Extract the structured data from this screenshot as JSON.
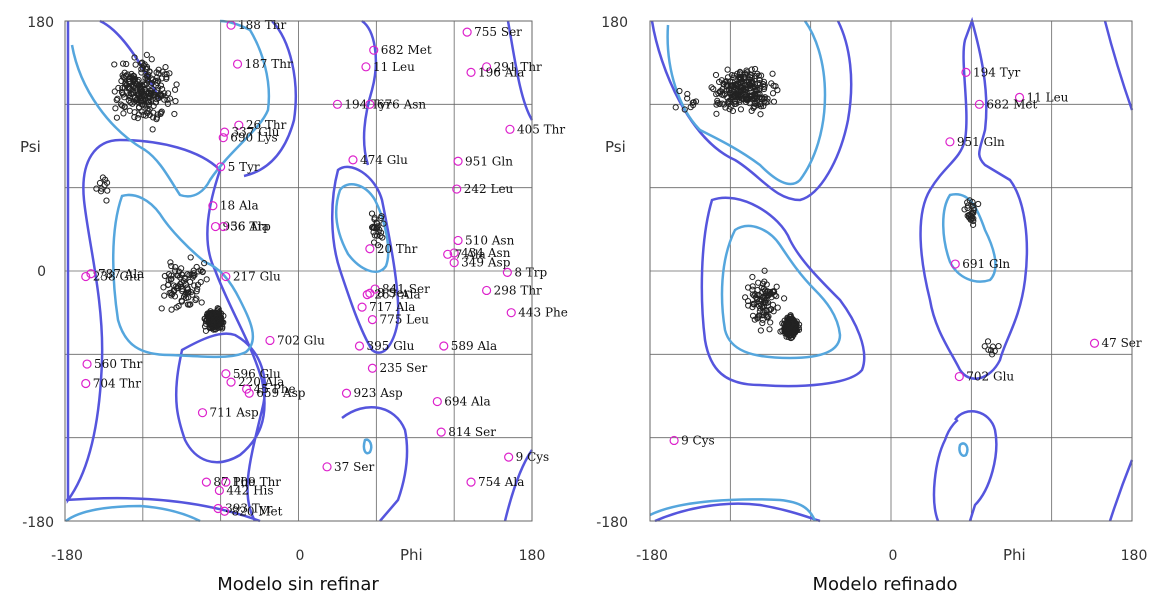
{
  "colors": {
    "background": "#ffffff",
    "grid": "#666666",
    "allowed_contour": "#5555dd",
    "favored_contour": "#55a6dd",
    "point_normal": "#222222",
    "point_outlier": "#dd22cc"
  },
  "chart_data": [
    {
      "type": "scatter",
      "title": "",
      "caption": "Modelo sin refinar",
      "xlabel": "Phi",
      "ylabel": "Psi",
      "xlim": [
        -180,
        180
      ],
      "ylim": [
        -180,
        180
      ],
      "xticks": [
        "-180",
        "0",
        "180"
      ],
      "yticks": [
        "180",
        "0",
        "-180"
      ],
      "grid": true,
      "outliers": [
        {
          "label": "188 Thr",
          "phi": -52,
          "psi": 177
        },
        {
          "label": "187 Thr",
          "phi": -47,
          "psi": 149
        },
        {
          "label": "682 Met",
          "phi": 58,
          "psi": 159
        },
        {
          "label": "11 Leu",
          "phi": 52,
          "psi": 147
        },
        {
          "label": "755 Ser",
          "phi": 130,
          "psi": 172
        },
        {
          "label": "291 Thr",
          "phi": 145,
          "psi": 147
        },
        {
          "label": "196 Ala",
          "phi": 133,
          "psi": 143
        },
        {
          "label": "194 Tyr",
          "phi": 30,
          "psi": 120
        },
        {
          "label": "676 Asn",
          "phi": 55,
          "psi": 120
        },
        {
          "label": "405 Thr",
          "phi": 163,
          "psi": 102
        },
        {
          "label": "26 Thr",
          "phi": -46,
          "psi": 105
        },
        {
          "label": "337 Glu",
          "phi": -57,
          "psi": 100
        },
        {
          "label": "690 Lys",
          "phi": -58,
          "psi": 96
        },
        {
          "label": "474 Glu",
          "phi": 42,
          "psi": 80
        },
        {
          "label": "951 Gln",
          "phi": 123,
          "psi": 79
        },
        {
          "label": "5 Tyr",
          "phi": -60,
          "psi": 75
        },
        {
          "label": "242 Leu",
          "phi": 122,
          "psi": 59
        },
        {
          "label": "18 Ala",
          "phi": -66,
          "psi": 47
        },
        {
          "label": "956 Ala",
          "phi": -64,
          "psi": 32
        },
        {
          "label": "36 Trp",
          "phi": -58,
          "psi": 32
        },
        {
          "label": "510 Asn",
          "phi": 123,
          "psi": 22
        },
        {
          "label": "20 Thr",
          "phi": 55,
          "psi": 16
        },
        {
          "label": "434 Asn",
          "phi": 120,
          "psi": 13
        },
        {
          "label": "7 Ala",
          "phi": 115,
          "psi": 12
        },
        {
          "label": "349 Asp",
          "phi": 120,
          "psi": 6
        },
        {
          "label": "8 Trp",
          "phi": 161,
          "psi": -1
        },
        {
          "label": "217 Glu",
          "phi": -56,
          "psi": -4
        },
        {
          "label": "238 Glu",
          "phi": -164,
          "psi": -4
        },
        {
          "label": "787 Ala",
          "phi": -160,
          "psi": -2
        },
        {
          "label": "841 Ser",
          "phi": 59,
          "psi": -13
        },
        {
          "label": "298 Thr",
          "phi": 145,
          "psi": -14
        },
        {
          "label": "8 Ser",
          "phi": 55,
          "psi": -16
        },
        {
          "label": "267 Ala",
          "phi": 53,
          "psi": -17
        },
        {
          "label": "443 Phe",
          "phi": 164,
          "psi": -30
        },
        {
          "label": "717 Ala",
          "phi": 49,
          "psi": -26
        },
        {
          "label": "775 Leu",
          "phi": 57,
          "psi": -35
        },
        {
          "label": "702 Glu",
          "phi": -22,
          "psi": -50
        },
        {
          "label": "395 Glu",
          "phi": 47,
          "psi": -54
        },
        {
          "label": "589 Ala",
          "phi": 112,
          "psi": -54
        },
        {
          "label": "560 Thr",
          "phi": -163,
          "psi": -67
        },
        {
          "label": "235 Ser",
          "phi": 57,
          "psi": -70
        },
        {
          "label": "596 Glu",
          "phi": -56,
          "psi": -74
        },
        {
          "label": "220 Ala",
          "phi": -52,
          "psi": -80
        },
        {
          "label": "704 Thr",
          "phi": -164,
          "psi": -81
        },
        {
          "label": "45 Phe",
          "phi": -40,
          "psi": -85
        },
        {
          "label": "659 Asp",
          "phi": -38,
          "psi": -88
        },
        {
          "label": "923 Asp",
          "phi": 37,
          "psi": -88
        },
        {
          "label": "694 Ala",
          "phi": 107,
          "psi": -94
        },
        {
          "label": "711 Asp",
          "phi": -74,
          "psi": -102
        },
        {
          "label": "814 Ser",
          "phi": 110,
          "psi": -116
        },
        {
          "label": "9 Cys",
          "phi": 162,
          "psi": -134
        },
        {
          "label": "37 Ser",
          "phi": 22,
          "psi": -141
        },
        {
          "label": "87 Phe",
          "phi": -71,
          "psi": -152
        },
        {
          "label": "109 Thr",
          "phi": -56,
          "psi": -152
        },
        {
          "label": "754 Ala",
          "phi": 133,
          "psi": -152
        },
        {
          "label": "442 His",
          "phi": -61,
          "psi": -158
        },
        {
          "label": "393 Tyr",
          "phi": -62,
          "psi": -171
        },
        {
          "label": "820 Met",
          "phi": -57,
          "psi": -173
        }
      ]
    },
    {
      "type": "scatter",
      "title": "",
      "caption": "Modelo refinado",
      "xlabel": "Phi",
      "ylabel": "Psi",
      "xlim": [
        -180,
        180
      ],
      "ylim": [
        -180,
        180
      ],
      "xticks": [
        "-180",
        "0",
        "180"
      ],
      "yticks": [
        "180",
        "0",
        "-180"
      ],
      "grid": true,
      "outliers": [
        {
          "label": "194 Tyr",
          "phi": 56,
          "psi": 143
        },
        {
          "label": "11 Leu",
          "phi": 96,
          "psi": 125
        },
        {
          "label": "682 Met",
          "phi": 66,
          "psi": 120
        },
        {
          "label": "951 Gln",
          "phi": 44,
          "psi": 93
        },
        {
          "label": "691 Gln",
          "phi": 48,
          "psi": 5
        },
        {
          "label": "702 Glu",
          "phi": 51,
          "psi": -76
        },
        {
          "label": "47 Ser",
          "phi": 152,
          "psi": -52
        },
        {
          "label": "9 Cys",
          "phi": -162,
          "psi": -122
        }
      ]
    }
  ]
}
